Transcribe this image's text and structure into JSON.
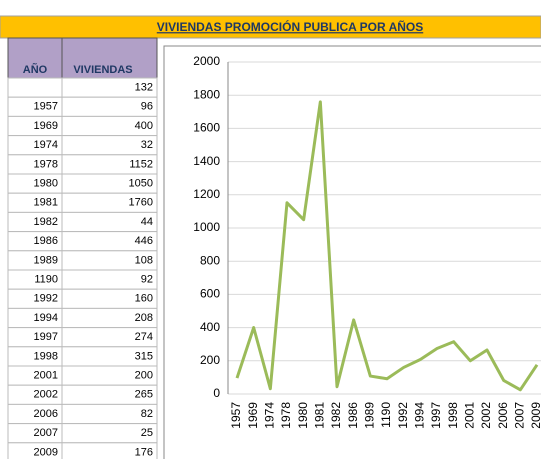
{
  "header": {
    "title": "VIVIENDAS PROMOCIÓN PUBLICA POR AÑOS"
  },
  "table": {
    "columns": [
      "AÑO",
      "VIVIENDAS"
    ],
    "rows": [
      [
        null,
        "132"
      ],
      [
        "1957",
        "96"
      ],
      [
        "1969",
        "400"
      ],
      [
        "1974",
        "32"
      ],
      [
        "1978",
        "1152"
      ],
      [
        "1980",
        "1050"
      ],
      [
        "1981",
        "1760"
      ],
      [
        "1982",
        "44"
      ],
      [
        "1986",
        "446"
      ],
      [
        "1989",
        "108"
      ],
      [
        "1190",
        "92"
      ],
      [
        "1992",
        "160"
      ],
      [
        "1994",
        "208"
      ],
      [
        "1997",
        "274"
      ],
      [
        "1998",
        "315"
      ],
      [
        "2001",
        "200"
      ],
      [
        "2002",
        "265"
      ],
      [
        "2006",
        "82"
      ],
      [
        "2007",
        "25"
      ],
      [
        "2009",
        "176"
      ]
    ]
  },
  "chart_data": {
    "type": "line",
    "categories": [
      "1957",
      "1969",
      "1974",
      "1978",
      "1980",
      "1981",
      "1982",
      "1986",
      "1989",
      "1190",
      "1992",
      "1994",
      "1997",
      "1998",
      "2001",
      "2002",
      "2006",
      "2007",
      "2009"
    ],
    "values": [
      96,
      400,
      32,
      1152,
      1050,
      1760,
      44,
      446,
      108,
      92,
      160,
      208,
      274,
      315,
      200,
      265,
      82,
      25,
      176
    ],
    "color": "#9bbb59",
    "ylim": [
      0,
      2000
    ],
    "yticks": [
      0,
      200,
      400,
      600,
      800,
      1000,
      1200,
      1400,
      1600,
      1800,
      2000
    ],
    "grid": true
  }
}
